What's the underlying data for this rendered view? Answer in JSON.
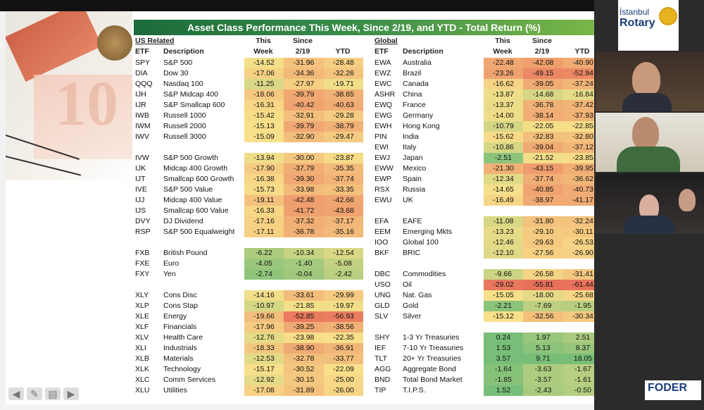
{
  "banner": "Asset Class Performance This Week, Since 2/19, and YTD - Total Return (%)",
  "left": {
    "section": "US Related",
    "col_etf": "ETF",
    "col_desc": "Description",
    "col1a": "This",
    "col1b": "Week",
    "col2a": "Since",
    "col2b": "2/19",
    "col3": "YTD",
    "rows": [
      [
        "SPY",
        "S&P 500",
        "-14.52",
        "-31.96",
        "-28.48"
      ],
      [
        "DIA",
        "Dow 30",
        "-17.06",
        "-34.36",
        "-32.26"
      ],
      [
        "QQQ",
        "Nasdaq 100",
        "-11.25",
        "-27.97",
        "-19.71"
      ],
      [
        "IJH",
        "S&P Midcap 400",
        "-18.06",
        "-39.79",
        "-38.65"
      ],
      [
        "IJR",
        "S&P Smallcap 600",
        "-16.31",
        "-40.42",
        "-40.63"
      ],
      [
        "IWB",
        "Russell 1000",
        "-15.42",
        "-32.91",
        "-29.28"
      ],
      [
        "IWM",
        "Russell 2000",
        "-15.13",
        "-39.79",
        "-38.79"
      ],
      [
        "IWV",
        "Russell 3000",
        "-15.09",
        "-32.90",
        "-29.47"
      ],
      null,
      [
        "IVW",
        "S&P 500 Growth",
        "-13.94",
        "-30.00",
        "-23.87"
      ],
      [
        "IJK",
        "Midcap 400 Growth",
        "-17.90",
        "-37.79",
        "-35.35"
      ],
      [
        "IJT",
        "Smallcap 600 Growth",
        "-16.38",
        "-39.30",
        "-37.74"
      ],
      [
        "IVE",
        "S&P 500 Value",
        "-15.73",
        "-33.98",
        "-33.35"
      ],
      [
        "IJJ",
        "Midcap 400 Value",
        "-19.11",
        "-42.48",
        "-42.66"
      ],
      [
        "IJS",
        "Smallcap 600 Value",
        "-16.33",
        "-41.72",
        "-43.68"
      ],
      [
        "DVY",
        "DJ Dividend",
        "-17.16",
        "-37.32",
        "-37.17"
      ],
      [
        "RSP",
        "S&P 500 Equalweight",
        "-17.11",
        "-36.78",
        "-35.16"
      ],
      null,
      [
        "FXB",
        "British Pound",
        "-6.22",
        "-10.34",
        "-12.54"
      ],
      [
        "FXE",
        "Euro",
        "-4.05",
        "-1.40",
        "-5.08"
      ],
      [
        "FXY",
        "Yen",
        "-2.74",
        "-0.04",
        "-2.42"
      ],
      null,
      [
        "XLY",
        "Cons Disc",
        "-14.16",
        "-33.61",
        "-29.99"
      ],
      [
        "XLP",
        "Cons Stap",
        "-10.97",
        "-21.85",
        "-19.97"
      ],
      [
        "XLE",
        "Energy",
        "-19.66",
        "-52.85",
        "-56.93"
      ],
      [
        "XLF",
        "Financials",
        "-17.96",
        "-39.25",
        "-38.56"
      ],
      [
        "XLV",
        "Health Care",
        "-12.76",
        "-23.98",
        "-22.35"
      ],
      [
        "XLI",
        "Industrials",
        "-18.33",
        "-38.90",
        "-36.91"
      ],
      [
        "XLB",
        "Materials",
        "-12.53",
        "-32.78",
        "-33.77"
      ],
      [
        "XLK",
        "Technology",
        "-15.17",
        "-30.52",
        "-22.09"
      ],
      [
        "XLC",
        "Comm Services",
        "-12.92",
        "-30.15",
        "-25.00"
      ],
      [
        "XLU",
        "Utilities",
        "-17.08",
        "-31.89",
        "-26.00"
      ]
    ]
  },
  "right": {
    "section": "Global",
    "col_etf": "ETF",
    "col_desc": "Description",
    "col1a": "This",
    "col1b": "Week",
    "col2a": "Since",
    "col2b": "2/19",
    "col3": "YTD",
    "rows": [
      [
        "EWA",
        "Australia",
        "-22.48",
        "-42.08",
        "-40.90"
      ],
      [
        "EWZ",
        "Brazil",
        "-23.26",
        "-49.15",
        "-52.94"
      ],
      [
        "EWC",
        "Canada",
        "-16.62",
        "-39.05",
        "-37.24"
      ],
      [
        "ASHR",
        "China",
        "-13.87",
        "-14.68",
        "-16.84"
      ],
      [
        "EWQ",
        "France",
        "-13.37",
        "-36.78",
        "-37.42"
      ],
      [
        "EWG",
        "Germany",
        "-14.00",
        "-38.14",
        "-37.93"
      ],
      [
        "EWH",
        "Hong Kong",
        "-10.79",
        "-22.05",
        "-22.85"
      ],
      [
        "PIN",
        "India",
        "-15.62",
        "-32.83",
        "-32.80"
      ],
      [
        "EWI",
        "Italy",
        "-10.86",
        "-39.04",
        "-37.12"
      ],
      [
        "EWJ",
        "Japan",
        "-2.51",
        "-21.52",
        "-23.85"
      ],
      [
        "EWW",
        "Mexico",
        "-21.30",
        "-43.15",
        "-39.95"
      ],
      [
        "EWP",
        "Spain",
        "-12.34",
        "-37.74",
        "-36.62"
      ],
      [
        "RSX",
        "Russia",
        "-14.65",
        "-40.85",
        "-40.73"
      ],
      [
        "EWU",
        "UK",
        "-16.49",
        "-38.97",
        "-41.17"
      ],
      null,
      [
        "EFA",
        "EAFE",
        "-11.08",
        "-31.80",
        "-32.24"
      ],
      [
        "EEM",
        "Emerging Mkts",
        "-13.23",
        "-29.10",
        "-30.11"
      ],
      [
        "IOO",
        "Global 100",
        "-12.46",
        "-29.63",
        "-26.53"
      ],
      [
        "BKF",
        "BRIC",
        "-12.10",
        "-27.56",
        "-26.90"
      ],
      null,
      [
        "DBC",
        "Commodities",
        "-9.66",
        "-26.58",
        "-31.41"
      ],
      [
        "USO",
        "Oil",
        "-29.02",
        "-55.81",
        "-61.44"
      ],
      [
        "UNG",
        "Nat. Gas",
        "-15.05",
        "-18.00",
        "-25.68"
      ],
      [
        "GLD",
        "Gold",
        "-2.21",
        "-7.69",
        "-1.95"
      ],
      [
        "SLV",
        "Silver",
        "-15.12",
        "-32.56",
        "-30.34"
      ],
      null,
      [
        "SHY",
        "1-3 Yr Treasuries",
        "0.24",
        "1.97",
        "2.51"
      ],
      [
        "IEF",
        "7-10 Yr Treasuries",
        "1.53",
        "5.13",
        "8.37"
      ],
      [
        "TLT",
        "20+ Yr Treasuries",
        "3.57",
        "9.71",
        "18.05"
      ],
      [
        "AGG",
        "Aggregate Bond",
        "-1.64",
        "-3.63",
        "-1.67"
      ],
      [
        "BND",
        "Total Bond Market",
        "-1.85",
        "-3.57",
        "-1.61"
      ],
      [
        "TIP",
        "T.I.P.S.",
        "1.52",
        "-2.43",
        "-0.50"
      ]
    ]
  },
  "logos": {
    "rotary_line1": "İstanbul",
    "rotary_line2": "Rotary",
    "foder": "FODER"
  },
  "colors": {
    "red": "#e8705a",
    "yellow": "#f8e08a",
    "green": "#7ec27e",
    "deepgreen": "#4aa657"
  }
}
